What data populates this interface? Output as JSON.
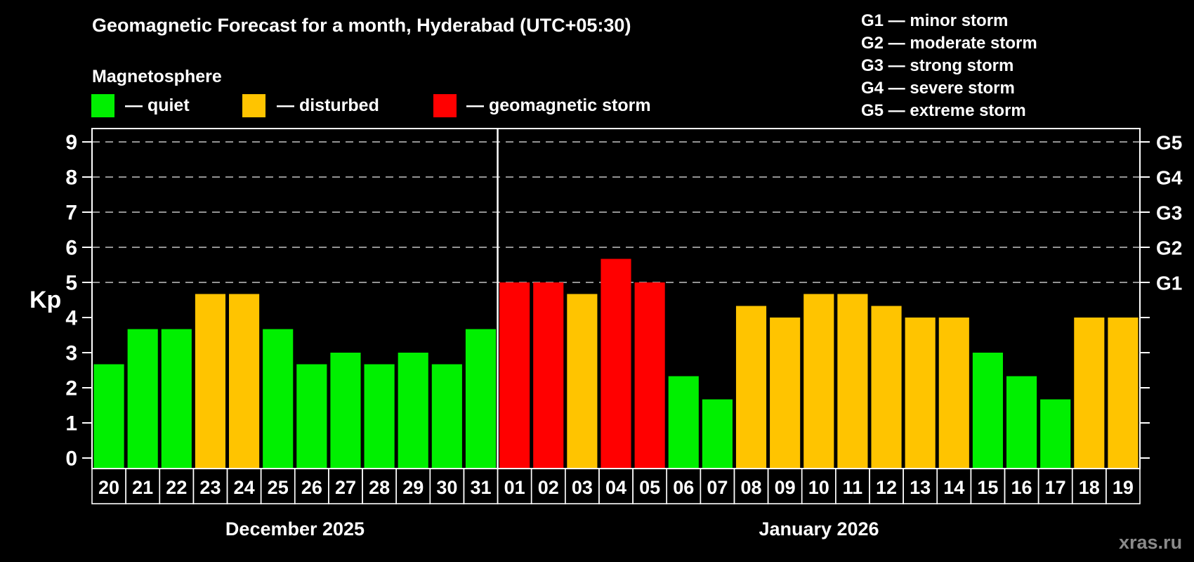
{
  "header": {
    "title": "Geomagnetic Forecast for a month, Hyderabad (UTC+05:30)",
    "subtitle": "Magnetosphere"
  },
  "legend": {
    "items": [
      {
        "name": "quiet",
        "label": "— quiet",
        "color": "#00f000"
      },
      {
        "name": "disturbed",
        "label": "— disturbed",
        "color": "#ffc400"
      },
      {
        "name": "geomagnetic-storm",
        "label": "— geomagnetic storm",
        "color": "#ff0000"
      }
    ]
  },
  "g_scale_legend": {
    "items": [
      "G1 — minor storm",
      "G2 — moderate storm",
      "G3 — strong storm",
      "G4 — severe storm",
      "G5 — extreme storm"
    ]
  },
  "axes": {
    "y_label": "Kp",
    "y_ticks": [
      0,
      1,
      2,
      3,
      4,
      5,
      6,
      7,
      8,
      9
    ],
    "g_ticks": [
      {
        "kp": 5,
        "label": "G1"
      },
      {
        "kp": 6,
        "label": "G2"
      },
      {
        "kp": 7,
        "label": "G3"
      },
      {
        "kp": 8,
        "label": "G4"
      },
      {
        "kp": 9,
        "label": "G5"
      }
    ]
  },
  "months": [
    {
      "label": "December 2025",
      "days": 12
    },
    {
      "label": "January 2026",
      "days": 19
    }
  ],
  "watermark": "xras.ru",
  "chart_data": {
    "type": "bar",
    "title": "Geomagnetic Forecast for a month, Hyderabad (UTC+05:30)",
    "xlabel": "",
    "ylabel": "Kp",
    "ylim": [
      0,
      9.7
    ],
    "grid": "dashed horizontal at Kp 5-9 (G1-G5 levels)",
    "legend_position": "top-left states, top-right G-scale",
    "categories": [
      "20",
      "21",
      "22",
      "23",
      "24",
      "25",
      "26",
      "27",
      "28",
      "29",
      "30",
      "31",
      "01",
      "02",
      "03",
      "04",
      "05",
      "06",
      "07",
      "08",
      "09",
      "10",
      "11",
      "12",
      "13",
      "14",
      "15",
      "16",
      "17",
      "18",
      "19"
    ],
    "values": [
      2.67,
      3.67,
      3.67,
      4.67,
      4.67,
      3.67,
      2.67,
      3,
      2.67,
      3,
      2.67,
      3.67,
      5,
      5,
      4.67,
      5.67,
      5,
      2.33,
      1.67,
      4.33,
      4,
      4.67,
      4.67,
      4.33,
      4,
      4,
      3,
      2.33,
      1.67,
      4,
      4
    ],
    "states": [
      "quiet",
      "quiet",
      "quiet",
      "disturbed",
      "disturbed",
      "quiet",
      "quiet",
      "quiet",
      "quiet",
      "quiet",
      "quiet",
      "quiet",
      "storm",
      "storm",
      "disturbed",
      "storm",
      "storm",
      "quiet",
      "quiet",
      "disturbed",
      "disturbed",
      "disturbed",
      "disturbed",
      "disturbed",
      "disturbed",
      "disturbed",
      "quiet",
      "quiet",
      "quiet",
      "disturbed",
      "disturbed"
    ],
    "colors": {
      "quiet": "#00f000",
      "disturbed": "#ffc400",
      "storm": "#ff0000"
    },
    "gridlines_kp": [
      5,
      6,
      7,
      8,
      9
    ]
  }
}
